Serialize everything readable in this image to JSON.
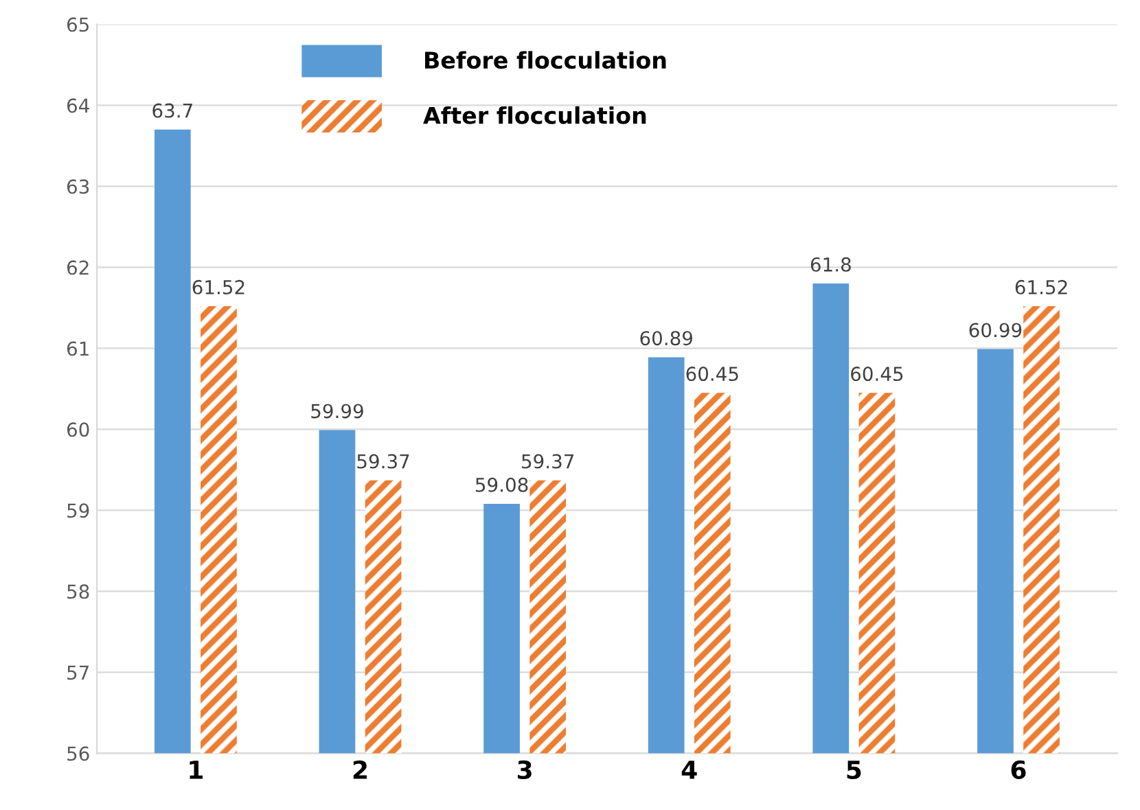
{
  "chart_data": {
    "type": "bar",
    "categories": [
      "1",
      "2",
      "3",
      "4",
      "5",
      "6"
    ],
    "series": [
      {
        "name": "Before flocculation",
        "color": "#5b9bd5",
        "values": [
          63.7,
          59.99,
          59.08,
          60.89,
          61.8,
          60.99
        ]
      },
      {
        "name": "After flocculation",
        "color": "#ed7d31",
        "values": [
          61.52,
          59.37,
          59.37,
          60.45,
          60.45,
          61.52
        ]
      }
    ],
    "ylim": [
      56,
      65
    ],
    "yticks": [
      56,
      57,
      58,
      59,
      60,
      61,
      62,
      63,
      64,
      65
    ],
    "grid": "y",
    "legend": "top",
    "data_labels": true
  }
}
